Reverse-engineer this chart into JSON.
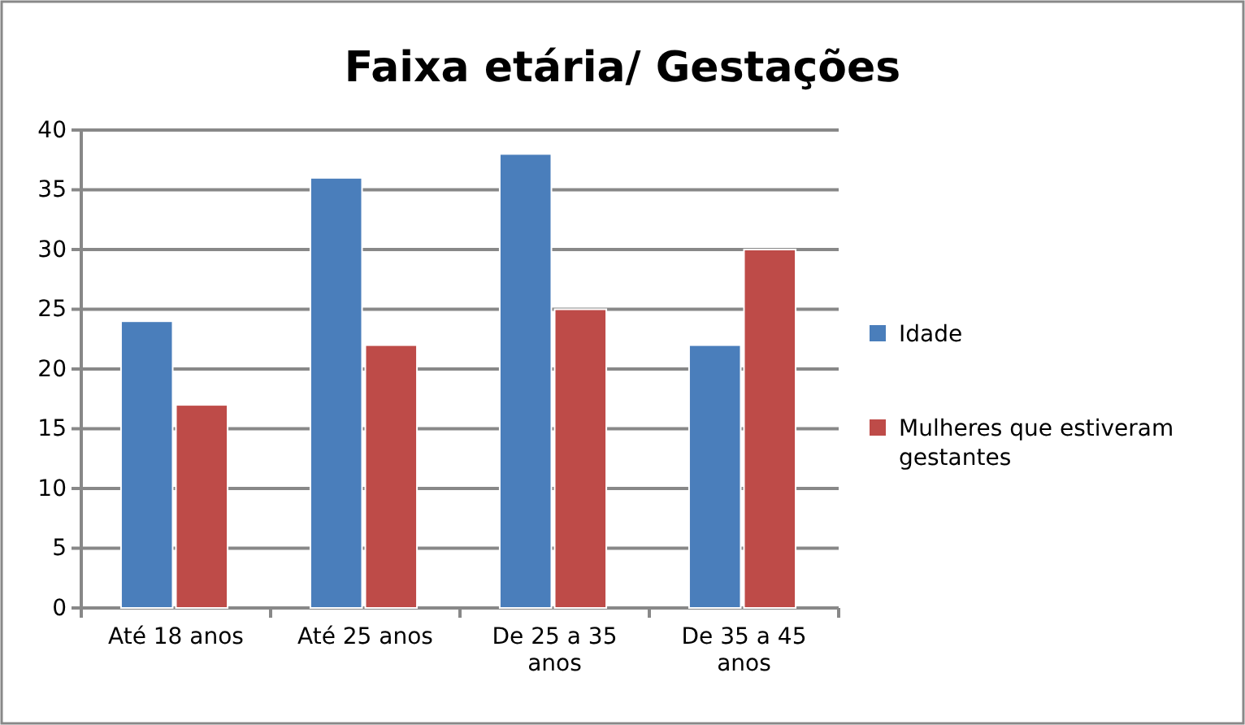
{
  "chart_data": {
    "type": "bar",
    "title": "Faixa etária/ Gestações",
    "categories": [
      "Até 18 anos",
      "Até 25 anos",
      "De 25 a 35 anos",
      "De 35 a 45 anos"
    ],
    "series": [
      {
        "name": "Idade",
        "color": "#4a7ebb",
        "values": [
          24,
          36,
          38,
          22
        ]
      },
      {
        "name": "Mulheres que estiveram gestantes",
        "color": "#be4b48",
        "values": [
          17,
          22,
          25,
          30
        ]
      }
    ],
    "ylim": [
      0,
      40
    ],
    "yticks": [
      0,
      5,
      10,
      15,
      20,
      25,
      30,
      35,
      40
    ],
    "grid": "y",
    "legend": "right"
  }
}
